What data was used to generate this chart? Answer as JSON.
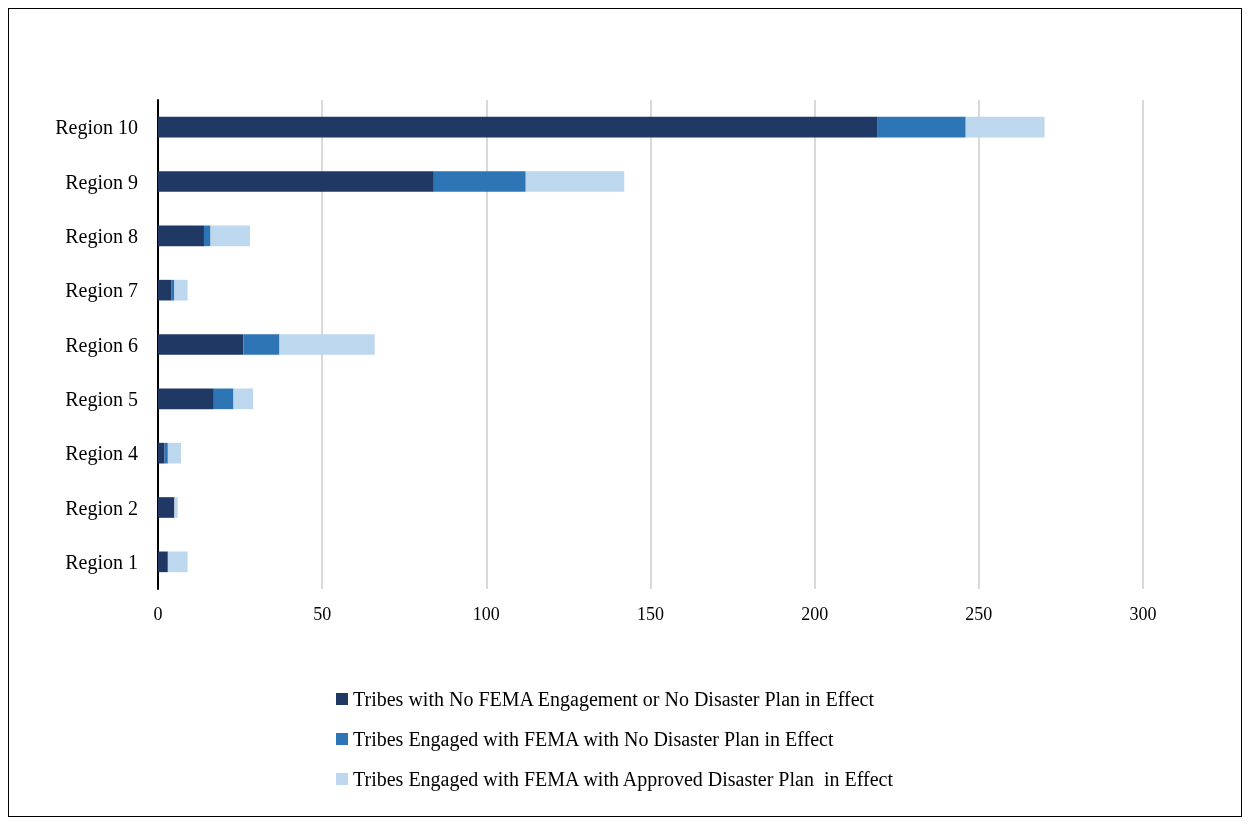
{
  "chart_data": {
    "type": "bar",
    "orientation": "horizontal",
    "stacked": true,
    "categories": [
      "Region 10",
      "Region 9",
      "Region 8",
      "Region 7",
      "Region 6",
      "Region 5",
      "Region 4",
      "Region 2",
      "Region 1"
    ],
    "series": [
      {
        "name": "Tribes with No FEMA Engagement or No Disaster Plan in Effect",
        "color": "#1f3864",
        "values": [
          219,
          84,
          14,
          4,
          26,
          17,
          2,
          5,
          3
        ]
      },
      {
        "name": "Tribes Engaged with FEMA with No Disaster Plan in Effect",
        "color": "#2e75b6",
        "values": [
          27,
          28,
          2,
          1,
          11,
          6,
          1,
          0,
          0
        ]
      },
      {
        "name": "Tribes Engaged with FEMA with Approved Disaster Plan  in Effect",
        "color": "#bdd7ee",
        "values": [
          24,
          30,
          12,
          4,
          29,
          6,
          4,
          1,
          6
        ]
      }
    ],
    "xlim": [
      0,
      300
    ],
    "xticks": [
      0,
      50,
      100,
      150,
      200,
      250,
      300
    ],
    "grid": "x",
    "legend": "bottom"
  }
}
